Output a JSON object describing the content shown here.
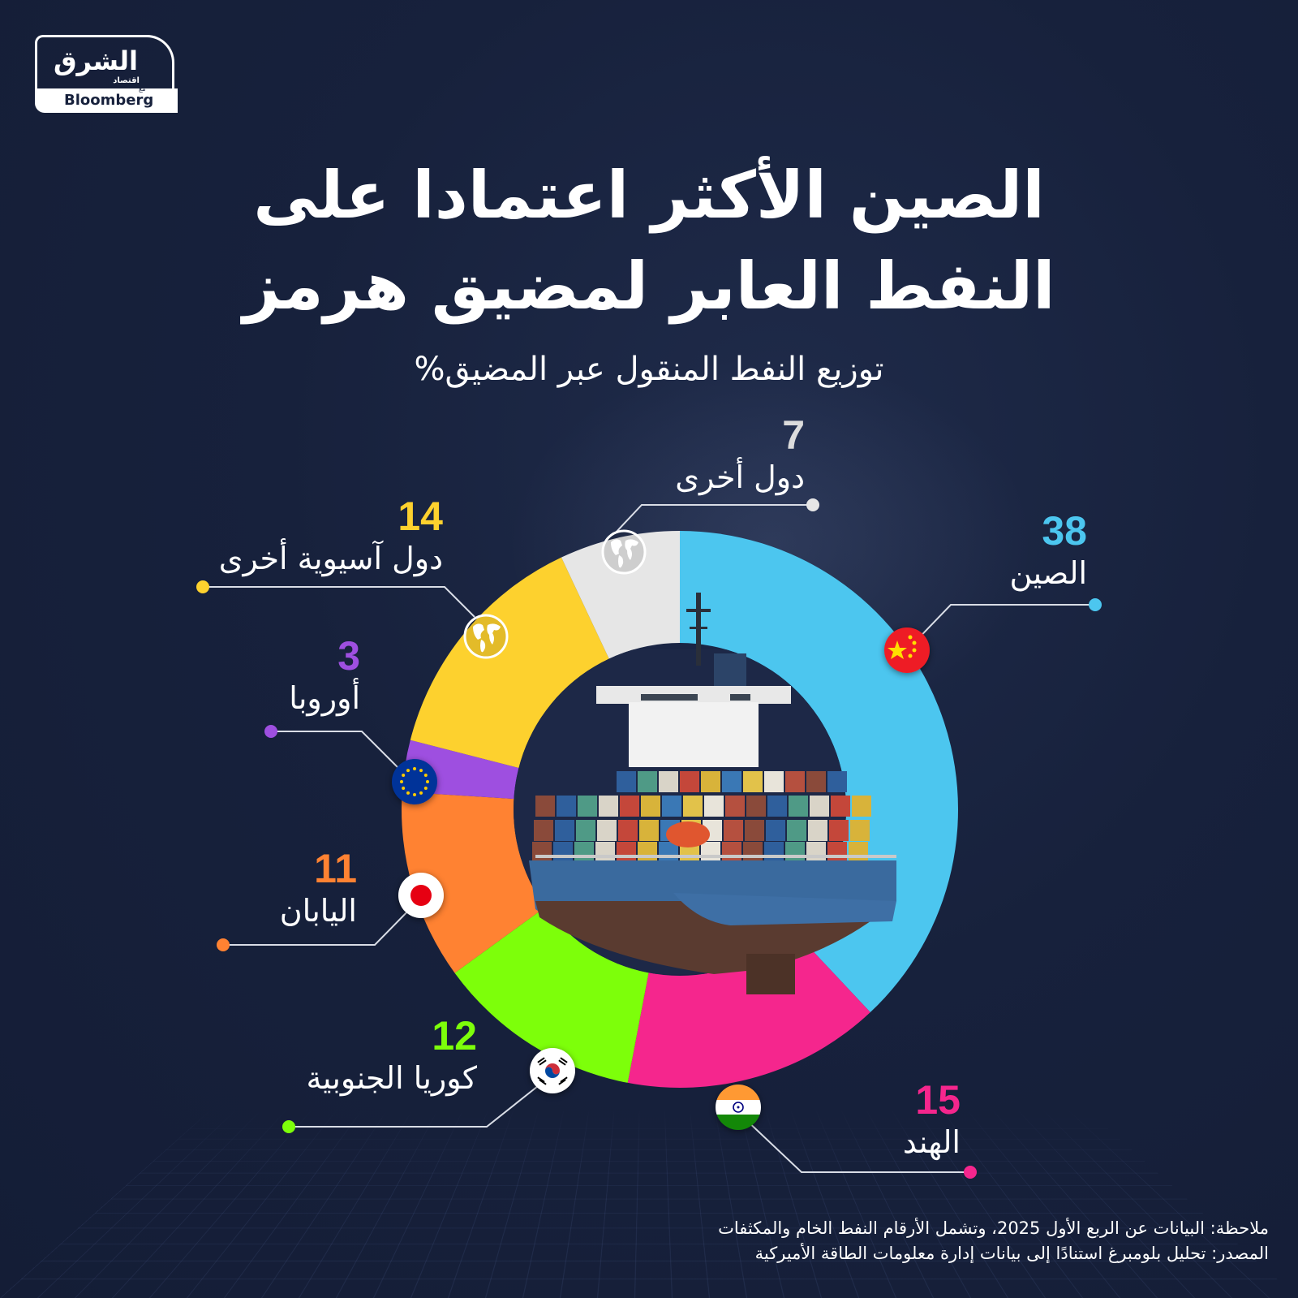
{
  "logo": {
    "brand_ar": "الشرق",
    "sub_ar": "اقتصاد",
    "with_ar": "مع",
    "partner": "Bloomberg"
  },
  "header": {
    "title_line1": "الصين الأكثر اعتمادا على",
    "title_line2": "النفط العابر لمضيق هرمز",
    "subtitle": "توزيع النفط المنقول عبر المضيق%"
  },
  "colors": {
    "background": "#17213c",
    "china": "#4cc6ef",
    "india": "#f5268d",
    "south_korea": "#7dff0a",
    "japan": "#ff8232",
    "europe": "#9e4fe0",
    "other_asian": "#fdd12e",
    "others": "#e6e6e6"
  },
  "chart_data": {
    "type": "pie",
    "variant": "donut",
    "title": "الصين الأكثر اعتمادا على النفط العابر لمضيق هرمز",
    "subtitle": "توزيع النفط المنقول عبر المضيق%",
    "unit": "%",
    "start_angle": "12 o'clock, clockwise",
    "categories": [
      "الصين",
      "الهند",
      "كوريا الجنوبية",
      "اليابان",
      "أوروبا",
      "دول آسيوية أخرى",
      "دول أخرى"
    ],
    "categories_en": [
      "China",
      "India",
      "South Korea",
      "Japan",
      "Europe",
      "Other Asian countries",
      "Other countries"
    ],
    "values": [
      38,
      15,
      12,
      11,
      3,
      14,
      7
    ],
    "slice_colors": [
      "#4cc6ef",
      "#f5268d",
      "#7dff0a",
      "#ff8232",
      "#9e4fe0",
      "#fdd12e",
      "#e6e6e6"
    ],
    "icons": [
      "flag-china",
      "flag-india",
      "flag-south-korea",
      "flag-japan",
      "flag-eu",
      "globe-icon",
      "globe-icon"
    ],
    "center_image": "container-ship"
  },
  "labels": {
    "china": {
      "value": "38",
      "name": "الصين"
    },
    "india": {
      "value": "15",
      "name": "الهند"
    },
    "south_korea": {
      "value": "12",
      "name": "كوريا الجنوبية"
    },
    "japan": {
      "value": "11",
      "name": "اليابان"
    },
    "europe": {
      "value": "3",
      "name": "أوروبا"
    },
    "other_asian": {
      "value": "14",
      "name": "دول آسيوية أخرى"
    },
    "others": {
      "value": "7",
      "name": "دول أخرى"
    }
  },
  "footer": {
    "note": "ملاحظة: البيانات عن الربع الأول 2025، وتشمل الأرقام النفط الخام والمكثفات",
    "source": "المصدر: تحليل بلومبرغ استنادًا إلى بيانات إدارة معلومات الطاقة الأميركية"
  }
}
